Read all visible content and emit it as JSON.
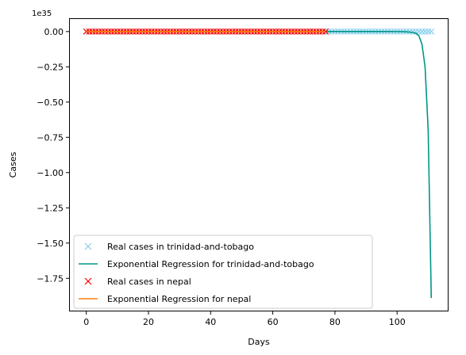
{
  "chart_data": {
    "type": "line",
    "title": "",
    "xlabel": "Days",
    "ylabel": "Cases",
    "offset_text": "1e35",
    "xlim": [
      -5.55,
      116.55
    ],
    "ylim": [
      -1.9845,
      0.0945
    ],
    "x_ticks": [
      0,
      20,
      40,
      60,
      80,
      100
    ],
    "y_ticks": [
      0.0,
      -0.25,
      -0.5,
      -0.75,
      -1.0,
      -1.25,
      -1.5,
      -1.75
    ],
    "y_tick_labels": [
      "0.00",
      "−0.25",
      "−0.50",
      "−0.75",
      "−1.00",
      "−1.25",
      "−1.50",
      "−1.75"
    ],
    "grid": false,
    "legend": {
      "position": "lower-left"
    },
    "series": [
      {
        "name": "Real cases in trinidad-and-tobago",
        "kind": "scatter",
        "marker": "x",
        "color": "#87ceeb",
        "x_range": [
          0,
          111
        ],
        "y_constant": 0.0
      },
      {
        "name": "Exponential Regression for trinidad-and-tobago",
        "kind": "line",
        "color": "#009688",
        "x": [
          0,
          95,
          100,
          103,
          105,
          106,
          107,
          108,
          109,
          110,
          111
        ],
        "y": [
          0.0,
          0.0,
          -0.0003,
          -0.002,
          -0.006,
          -0.012,
          -0.03,
          -0.09,
          -0.25,
          -0.7,
          -1.89
        ]
      },
      {
        "name": "Real cases in nepal",
        "kind": "scatter",
        "marker": "x",
        "color": "#ff0000",
        "x_range": [
          0,
          77
        ],
        "y_constant": 0.0
      },
      {
        "name": "Exponential Regression for nepal",
        "kind": "line",
        "color": "#ff7f0e",
        "x": [
          0,
          77
        ],
        "y": [
          0.0,
          0.0
        ]
      }
    ]
  }
}
